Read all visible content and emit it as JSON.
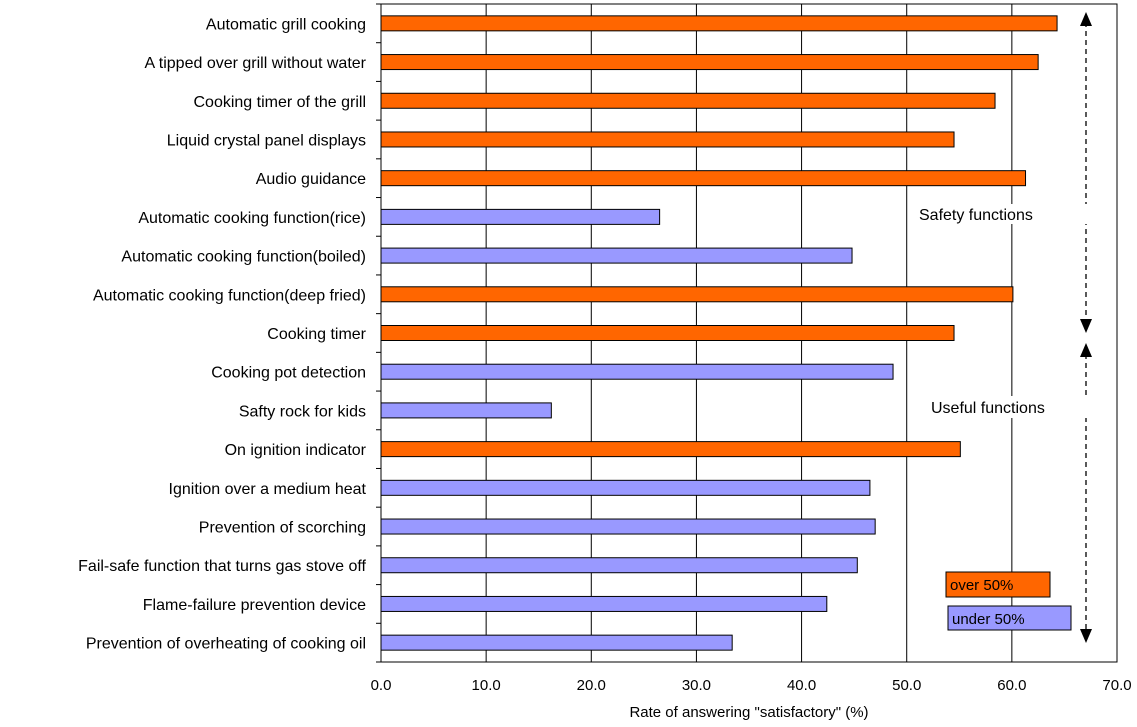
{
  "chart_data": {
    "type": "bar",
    "orientation": "horizontal",
    "xlabel": "Rate of answering \"satisfactory\"  (%)",
    "xlim": [
      0,
      70
    ],
    "xticks": [
      "0.0",
      "10.0",
      "20.0",
      "30.0",
      "40.0",
      "50.0",
      "60.0",
      "70.0"
    ],
    "grid": "vertical",
    "colors": {
      "over": "#ff6600",
      "under": "#9999ff",
      "outline": "#000000"
    },
    "categories": [
      "Automatic grill cooking",
      "A tipped over grill without water",
      "Cooking timer of the grill",
      "Liquid crystal panel displays",
      "Audio guidance",
      "Automatic cooking function(rice)",
      "Automatic cooking function(boiled)",
      "Automatic cooking function(deep fried)",
      "Cooking timer",
      "Cooking pot detection",
      "Safty rock for kids",
      "On ignition indicator",
      "Ignition over a medium heat",
      "Prevention of scorching",
      "Fail-safe function that turns gas stove off",
      "Flame-failure prevention device",
      "Prevention of overheating of cooking oil"
    ],
    "values": [
      64.3,
      62.5,
      58.4,
      54.5,
      61.3,
      26.5,
      44.8,
      60.1,
      54.5,
      48.7,
      16.2,
      55.1,
      46.5,
      47.0,
      45.3,
      42.4,
      33.4
    ],
    "legend": [
      {
        "label": "over 50%",
        "color": "#ff6600"
      },
      {
        "label": "under 50%",
        "color": "#9999ff"
      }
    ],
    "annotations": [
      {
        "text": "Safety functions"
      },
      {
        "text": "Useful functions"
      }
    ]
  }
}
